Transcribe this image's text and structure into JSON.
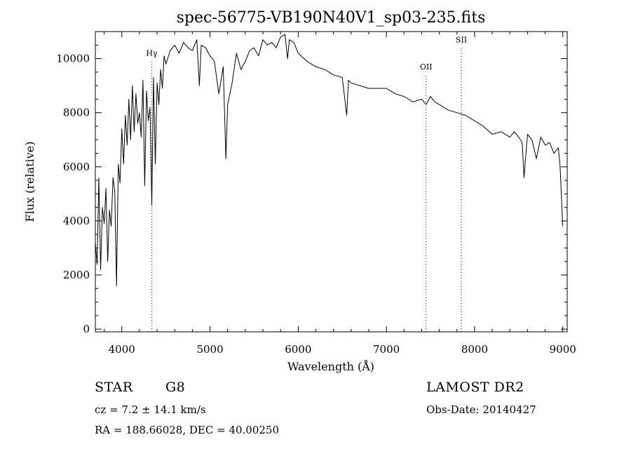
{
  "chart_data": {
    "type": "line",
    "title": "spec-56775-VB190N40V1_sp03-235.fits",
    "xlabel": "Wavelength (Å)",
    "ylabel": "Flux (relative)",
    "xlim": [
      3700,
      9050
    ],
    "ylim": [
      -100,
      11000
    ],
    "x_ticks": [
      4000,
      5000,
      6000,
      7000,
      8000,
      9000
    ],
    "y_ticks": [
      0,
      2000,
      4000,
      6000,
      8000,
      10000
    ],
    "grid": false,
    "line_color": "#000000",
    "spectral_lines": [
      {
        "label": "Hγ",
        "wavelength": 4340,
        "label_flux": 10100
      },
      {
        "label": "OII",
        "wavelength": 7450,
        "label_flux": 9600
      },
      {
        "label": "SII",
        "wavelength": 7850,
        "label_flux": 10600
      }
    ],
    "series": [
      {
        "x": [
          3700,
          3720,
          3740,
          3760,
          3780,
          3800,
          3820,
          3840,
          3860,
          3880,
          3900,
          3920,
          3940,
          3960,
          3980,
          4000,
          4020,
          4040,
          4060,
          4080,
          4100,
          4120,
          4140,
          4160,
          4180,
          4200,
          4220,
          4240,
          4260,
          4280,
          4300,
          4320,
          4340,
          4360,
          4380,
          4400,
          4420,
          4440,
          4460,
          4480,
          4500,
          4550,
          4600,
          4650,
          4700,
          4750,
          4800,
          4850,
          4880,
          4900,
          4950,
          5000,
          5050,
          5100,
          5150,
          5180,
          5200,
          5250,
          5300,
          5350,
          5400,
          5450,
          5500,
          5550,
          5600,
          5650,
          5700,
          5750,
          5800,
          5850,
          5880,
          5900,
          5950,
          6000,
          6100,
          6200,
          6300,
          6400,
          6500,
          6550,
          6570,
          6600,
          6700,
          6800,
          6900,
          7000,
          7100,
          7200,
          7300,
          7400,
          7450,
          7500,
          7550,
          7600,
          7700,
          7800,
          7900,
          8000,
          8100,
          8200,
          8300,
          8400,
          8450,
          8500,
          8540,
          8560,
          8600,
          8650,
          8700,
          8750,
          8800,
          8850,
          8900,
          8950,
          8970,
          8990,
          9000
        ],
        "y": [
          3200,
          2400,
          5600,
          2200,
          4500,
          3900,
          5200,
          2500,
          4400,
          3800,
          5600,
          5100,
          1600,
          6100,
          5400,
          7400,
          6100,
          7900,
          6800,
          8500,
          7000,
          9000,
          7300,
          8700,
          7600,
          8000,
          7100,
          9200,
          5300,
          8800,
          7700,
          8200,
          4600,
          9300,
          6100,
          9100,
          8300,
          9600,
          8900,
          10100,
          9800,
          10300,
          10500,
          10200,
          10600,
          10400,
          10300,
          10700,
          9000,
          10500,
          10400,
          10100,
          9900,
          8700,
          9700,
          6300,
          8300,
          9100,
          10200,
          9600,
          9900,
          10300,
          10400,
          10100,
          10700,
          10500,
          10600,
          10400,
          10800,
          10900,
          10000,
          10700,
          10600,
          10200,
          9900,
          9700,
          9600,
          9400,
          9300,
          7900,
          9200,
          9100,
          9000,
          8900,
          8900,
          8900,
          8700,
          8600,
          8400,
          8500,
          8300,
          8600,
          8400,
          8300,
          8100,
          8000,
          7900,
          7700,
          7500,
          7200,
          7300,
          7100,
          7300,
          7100,
          6900,
          5600,
          7200,
          7000,
          6300,
          7100,
          6800,
          6900,
          6500,
          6700,
          6000,
          4500,
          3800
        ]
      }
    ]
  },
  "footer": {
    "class_label": "STAR",
    "subclass": "G8",
    "survey": "LAMOST DR2",
    "velocity": "cz = 7.2 ± 14.1 km/s",
    "obs_date": "Obs-Date: 20140427",
    "coords": "RA = 188.66028, DEC =  40.00250"
  }
}
